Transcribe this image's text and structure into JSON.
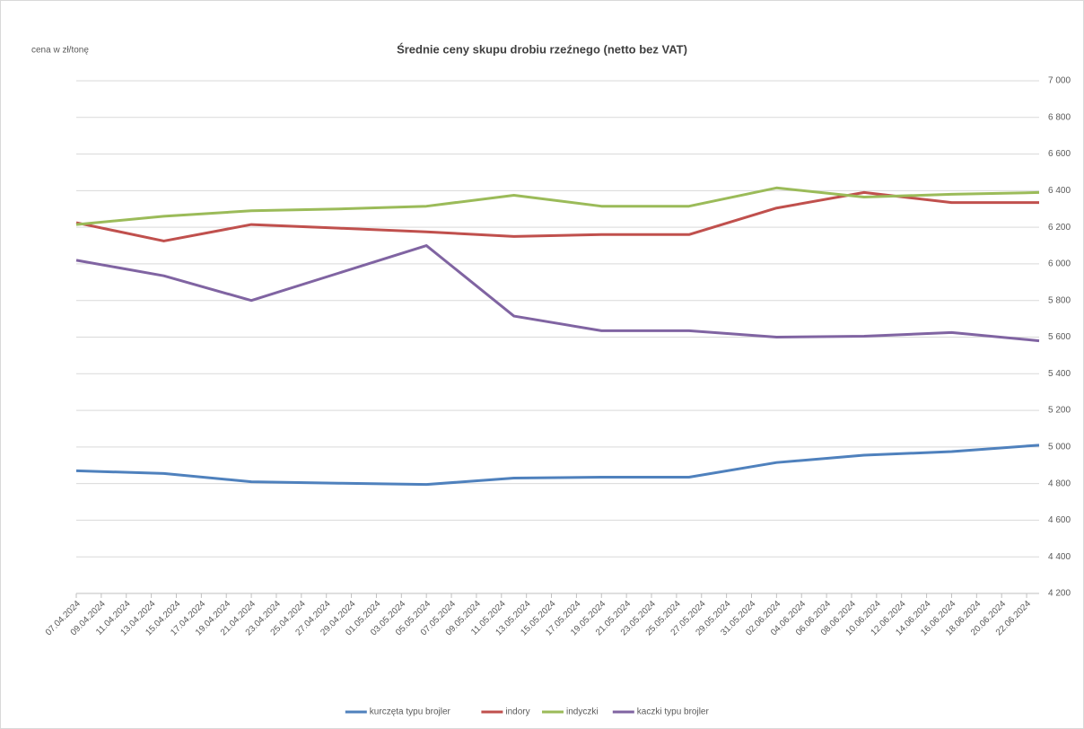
{
  "chart_data": {
    "type": "line",
    "title": "Średnie ceny skupu drobiu rzeźnego (netto bez VAT)",
    "y_label": "cena w zł/tonę",
    "x": [
      "07.04.2024",
      "14.04.2024",
      "21.04.2024",
      "28.04.2024",
      "05.05.2024",
      "12.05.2024",
      "19.05.2024",
      "26.05.2024",
      "02.06.2024",
      "09.06.2024",
      "16.06.2024",
      "23.06.2024"
    ],
    "xlim": [
      "07.04.2024",
      "23.06.2024"
    ],
    "xticks": [
      "07.04.2024",
      "09.04.2024",
      "11.04.2024",
      "13.04.2024",
      "15.04.2024",
      "17.04.2024",
      "19.04.2024",
      "21.04.2024",
      "23.04.2024",
      "25.04.2024",
      "27.04.2024",
      "29.04.2024",
      "01.05.2024",
      "03.05.2024",
      "05.05.2024",
      "07.05.2024",
      "09.05.2024",
      "11.05.2024",
      "13.05.2024",
      "15.05.2024",
      "17.05.2024",
      "19.05.2024",
      "21.05.2024",
      "23.05.2024",
      "25.05.2024",
      "27.05.2024",
      "29.05.2024",
      "31.05.2024",
      "02.06.2024",
      "04.06.2024",
      "06.06.2024",
      "08.06.2024",
      "10.06.2024",
      "12.06.2024",
      "14.06.2024",
      "16.06.2024",
      "18.06.2024",
      "20.06.2024",
      "22.06.2024"
    ],
    "ylim": [
      4200,
      7000
    ],
    "yticks": [
      {
        "value": 4200,
        "label": "4 200"
      },
      {
        "value": 4400,
        "label": "4 400"
      },
      {
        "value": 4600,
        "label": "4 600"
      },
      {
        "value": 4800,
        "label": "4 800"
      },
      {
        "value": 5000,
        "label": "5 000"
      },
      {
        "value": 5200,
        "label": "5 200"
      },
      {
        "value": 5400,
        "label": "5 400"
      },
      {
        "value": 5600,
        "label": "5 600"
      },
      {
        "value": 5800,
        "label": "5 800"
      },
      {
        "value": 6000,
        "label": "6 000"
      },
      {
        "value": 6200,
        "label": "6 200"
      },
      {
        "value": 6400,
        "label": "6 400"
      },
      {
        "value": 6600,
        "label": "6 600"
      },
      {
        "value": 6800,
        "label": "6 800"
      },
      {
        "value": 7000,
        "label": "7 000"
      }
    ],
    "grid": true,
    "legend": "bottom",
    "series": [
      {
        "name": "kurczęta typu brojler",
        "color": "#4f81bd",
        "values": [
          4870,
          4855,
          4810,
          4802,
          4795,
          4830,
          4835,
          4835,
          4915,
          4955,
          4975,
          5010
        ]
      },
      {
        "name": "indory",
        "color": "#c0504d",
        "values": [
          6225,
          6125,
          6215,
          6195,
          6175,
          6150,
          6160,
          6160,
          6305,
          6390,
          6335,
          6335
        ]
      },
      {
        "name": "indyczki",
        "color": "#9bbb59",
        "values": [
          6215,
          6260,
          6290,
          6300,
          6315,
          6375,
          6315,
          6315,
          6415,
          6365,
          6380,
          6390
        ]
      },
      {
        "name": "kaczki typu brojler",
        "color": "#8064a2",
        "values": [
          6020,
          5935,
          5800,
          5950,
          6100,
          5715,
          5635,
          5635,
          5600,
          5605,
          5625,
          5580
        ]
      }
    ]
  }
}
